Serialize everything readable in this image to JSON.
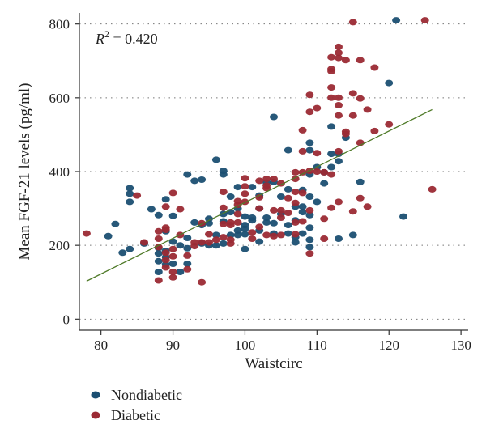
{
  "chart_data": {
    "type": "scatter",
    "xlabel": "Waistcirc",
    "ylabel": "Mean FGF-21 levels (pg/ml)",
    "xlim": [
      77,
      131
    ],
    "ylim": [
      -30,
      830
    ],
    "x_ticks": [
      80,
      90,
      100,
      110,
      120,
      130
    ],
    "y_ticks": [
      0,
      200,
      400,
      600,
      800
    ],
    "grid": "dotted horizontal",
    "legend_position": "bottom-left",
    "annotation": {
      "r2_symbol": "R",
      "r2_sup": "2",
      "r2_text": " = 0.420"
    },
    "trendline": {
      "x": [
        78,
        126
      ],
      "y": [
        103,
        568
      ],
      "color": "#4f7a28"
    },
    "series": [
      {
        "name": "Nondiabetic",
        "color": "#1b4f72",
        "points": [
          [
            81,
            225
          ],
          [
            82,
            258
          ],
          [
            83,
            180
          ],
          [
            84,
            355
          ],
          [
            84,
            340
          ],
          [
            84,
            318
          ],
          [
            84,
            190
          ],
          [
            86,
            205
          ],
          [
            87,
            298
          ],
          [
            88,
            282
          ],
          [
            88,
            193
          ],
          [
            88,
            178
          ],
          [
            88,
            157
          ],
          [
            88,
            128
          ],
          [
            89,
            325
          ],
          [
            89,
            238
          ],
          [
            89,
            185
          ],
          [
            89,
            168
          ],
          [
            89,
            148
          ],
          [
            90,
            280
          ],
          [
            90,
            210
          ],
          [
            90,
            150
          ],
          [
            91,
            200
          ],
          [
            91,
            128
          ],
          [
            92,
            392
          ],
          [
            92,
            220
          ],
          [
            92,
            192
          ],
          [
            92,
            150
          ],
          [
            93,
            375
          ],
          [
            93,
            262
          ],
          [
            94,
            378
          ],
          [
            94,
            255
          ],
          [
            94,
            205
          ],
          [
            95,
            272
          ],
          [
            95,
            260
          ],
          [
            95,
            200
          ],
          [
            96,
            432
          ],
          [
            96,
            228
          ],
          [
            96,
            200
          ],
          [
            97,
            402
          ],
          [
            97,
            392
          ],
          [
            97,
            285
          ],
          [
            97,
            265
          ],
          [
            97,
            205
          ],
          [
            98,
            332
          ],
          [
            98,
            290
          ],
          [
            98,
            228
          ],
          [
            99,
            358
          ],
          [
            99,
            300
          ],
          [
            99,
            240
          ],
          [
            99,
            228
          ],
          [
            100,
            278
          ],
          [
            100,
            255
          ],
          [
            100,
            245
          ],
          [
            100,
            230
          ],
          [
            100,
            190
          ],
          [
            101,
            358
          ],
          [
            101,
            275
          ],
          [
            101,
            268
          ],
          [
            102,
            335
          ],
          [
            102,
            300
          ],
          [
            102,
            240
          ],
          [
            102,
            210
          ],
          [
            103,
            370
          ],
          [
            103,
            275
          ],
          [
            103,
            262
          ],
          [
            104,
            548
          ],
          [
            104,
            372
          ],
          [
            104,
            260
          ],
          [
            104,
            232
          ],
          [
            105,
            332
          ],
          [
            105,
            285
          ],
          [
            106,
            458
          ],
          [
            106,
            352
          ],
          [
            106,
            255
          ],
          [
            106,
            232
          ],
          [
            107,
            305
          ],
          [
            107,
            268
          ],
          [
            107,
            222
          ],
          [
            107,
            208
          ],
          [
            108,
            350
          ],
          [
            108,
            305
          ],
          [
            108,
            290
          ],
          [
            108,
            232
          ],
          [
            109,
            478
          ],
          [
            109,
            458
          ],
          [
            109,
            392
          ],
          [
            109,
            332
          ],
          [
            109,
            282
          ],
          [
            109,
            248
          ],
          [
            109,
            215
          ],
          [
            109,
            195
          ],
          [
            110,
            412
          ],
          [
            110,
            318
          ],
          [
            111,
            368
          ],
          [
            111,
            398
          ],
          [
            112,
            522
          ],
          [
            112,
            448
          ],
          [
            112,
            412
          ],
          [
            113,
            448
          ],
          [
            113,
            428
          ],
          [
            113,
            218
          ],
          [
            114,
            492
          ],
          [
            115,
            228
          ],
          [
            116,
            372
          ],
          [
            120,
            640
          ],
          [
            121,
            810
          ],
          [
            122,
            278
          ]
        ]
      },
      {
        "name": "Diabetic",
        "color": "#9b2a34",
        "points": [
          [
            78,
            232
          ],
          [
            85,
            335
          ],
          [
            86,
            208
          ],
          [
            88,
            238
          ],
          [
            88,
            218
          ],
          [
            88,
            195
          ],
          [
            88,
            105
          ],
          [
            89,
            305
          ],
          [
            89,
            248
          ],
          [
            89,
            242
          ],
          [
            89,
            180
          ],
          [
            89,
            160
          ],
          [
            89,
            140
          ],
          [
            90,
            342
          ],
          [
            90,
            190
          ],
          [
            90,
            170
          ],
          [
            90,
            128
          ],
          [
            90,
            113
          ],
          [
            91,
            298
          ],
          [
            91,
            228
          ],
          [
            92,
            172
          ],
          [
            92,
            135
          ],
          [
            93,
            208
          ],
          [
            93,
            198
          ],
          [
            94,
            260
          ],
          [
            94,
            208
          ],
          [
            94,
            100
          ],
          [
            95,
            230
          ],
          [
            95,
            208
          ],
          [
            96,
            215
          ],
          [
            97,
            345
          ],
          [
            97,
            302
          ],
          [
            97,
            258
          ],
          [
            97,
            222
          ],
          [
            98,
            262
          ],
          [
            98,
            255
          ],
          [
            98,
            215
          ],
          [
            98,
            205
          ],
          [
            99,
            320
          ],
          [
            99,
            310
          ],
          [
            99,
            285
          ],
          [
            99,
            262
          ],
          [
            100,
            382
          ],
          [
            100,
            360
          ],
          [
            100,
            340
          ],
          [
            100,
            318
          ],
          [
            101,
            235
          ],
          [
            101,
            218
          ],
          [
            102,
            375
          ],
          [
            102,
            330
          ],
          [
            102,
            300
          ],
          [
            102,
            250
          ],
          [
            103,
            380
          ],
          [
            103,
            362
          ],
          [
            103,
            355
          ],
          [
            103,
            228
          ],
          [
            104,
            380
          ],
          [
            104,
            295
          ],
          [
            104,
            225
          ],
          [
            105,
            368
          ],
          [
            105,
            295
          ],
          [
            105,
            275
          ],
          [
            105,
            228
          ],
          [
            106,
            328
          ],
          [
            106,
            288
          ],
          [
            107,
            398
          ],
          [
            107,
            380
          ],
          [
            107,
            345
          ],
          [
            107,
            315
          ],
          [
            107,
            262
          ],
          [
            107,
            230
          ],
          [
            108,
            512
          ],
          [
            108,
            455
          ],
          [
            108,
            398
          ],
          [
            108,
            342
          ],
          [
            108,
            265
          ],
          [
            109,
            608
          ],
          [
            109,
            562
          ],
          [
            109,
            402
          ],
          [
            109,
            295
          ],
          [
            109,
            178
          ],
          [
            110,
            572
          ],
          [
            110,
            450
          ],
          [
            110,
            400
          ],
          [
            111,
            398
          ],
          [
            111,
            272
          ],
          [
            111,
            218
          ],
          [
            112,
            710
          ],
          [
            112,
            678
          ],
          [
            112,
            672
          ],
          [
            112,
            628
          ],
          [
            112,
            600
          ],
          [
            112,
            392
          ],
          [
            112,
            302
          ],
          [
            113,
            738
          ],
          [
            113,
            722
          ],
          [
            113,
            708
          ],
          [
            113,
            600
          ],
          [
            113,
            580
          ],
          [
            113,
            552
          ],
          [
            113,
            455
          ],
          [
            113,
            318
          ],
          [
            114,
            702
          ],
          [
            114,
            508
          ],
          [
            114,
            502
          ],
          [
            115,
            805
          ],
          [
            115,
            612
          ],
          [
            115,
            552
          ],
          [
            115,
            292
          ],
          [
            116,
            702
          ],
          [
            116,
            598
          ],
          [
            116,
            478
          ],
          [
            116,
            328
          ],
          [
            117,
            568
          ],
          [
            117,
            305
          ],
          [
            118,
            682
          ],
          [
            118,
            510
          ],
          [
            120,
            528
          ],
          [
            125,
            810
          ],
          [
            126,
            352
          ]
        ]
      }
    ]
  }
}
